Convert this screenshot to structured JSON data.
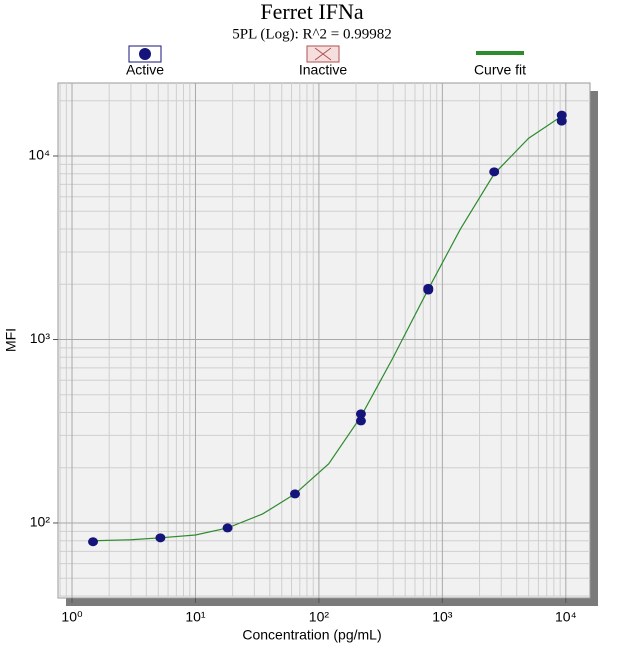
{
  "chart_data": {
    "type": "scatter",
    "title": "Ferret IFNa",
    "subtitle": "5PL (Log): R^2 = 0.99982",
    "x_label": "Concentration (pg/mL)",
    "y_label": "MFI",
    "xscale": "log",
    "yscale": "log",
    "grid": true,
    "legend": "top",
    "xlim": [
      0.77,
      15700
    ],
    "ylim": [
      39,
      25000
    ],
    "xticks": [
      {
        "value": 1,
        "label": "10⁰"
      },
      {
        "value": 10,
        "label": "10¹"
      },
      {
        "value": 100,
        "label": "10²"
      },
      {
        "value": 1000,
        "label": "10³"
      },
      {
        "value": 10000,
        "label": "10⁴"
      }
    ],
    "yticks": [
      {
        "value": 100,
        "label": "10²"
      },
      {
        "value": 1000,
        "label": "10³"
      },
      {
        "value": 10000,
        "label": "10⁴"
      }
    ],
    "xminorticks": [
      0.8,
      0.9,
      2,
      3,
      4,
      5,
      6,
      7,
      8,
      9,
      20,
      30,
      40,
      50,
      60,
      70,
      80,
      90,
      200,
      300,
      400,
      500,
      600,
      700,
      800,
      900,
      2000,
      3000,
      4000,
      5000,
      6000,
      7000,
      8000,
      9000
    ],
    "yminorticks": [
      40,
      50,
      60,
      70,
      80,
      90,
      200,
      300,
      400,
      500,
      600,
      700,
      800,
      900,
      2000,
      3000,
      4000,
      5000,
      6000,
      7000,
      8000,
      9000,
      20000
    ],
    "series": [
      {
        "name": "Active",
        "color": "#14147a",
        "style": "marker",
        "x": [
          1.48,
          5.2,
          18.2,
          64,
          219,
          219,
          769,
          769,
          2630,
          9270,
          9270
        ],
        "values": [
          79,
          83,
          94,
          144,
          393,
          360,
          1900,
          1860,
          8200,
          16700,
          15500
        ]
      },
      {
        "name": "Inactive",
        "color": "#b05050",
        "style": "cross",
        "x": [],
        "values": []
      },
      {
        "name": "Curve fit",
        "color": "#2e8b2e",
        "style": "line",
        "x": [
          1.48,
          3,
          5.2,
          10,
          18.2,
          35,
          64,
          120,
          219,
          400,
          769,
          1400,
          2630,
          5000,
          9270
        ],
        "values": [
          80,
          81,
          83,
          86,
          94,
          112,
          144,
          210,
          380,
          800,
          1880,
          4000,
          8000,
          12500,
          16500
        ]
      }
    ]
  }
}
